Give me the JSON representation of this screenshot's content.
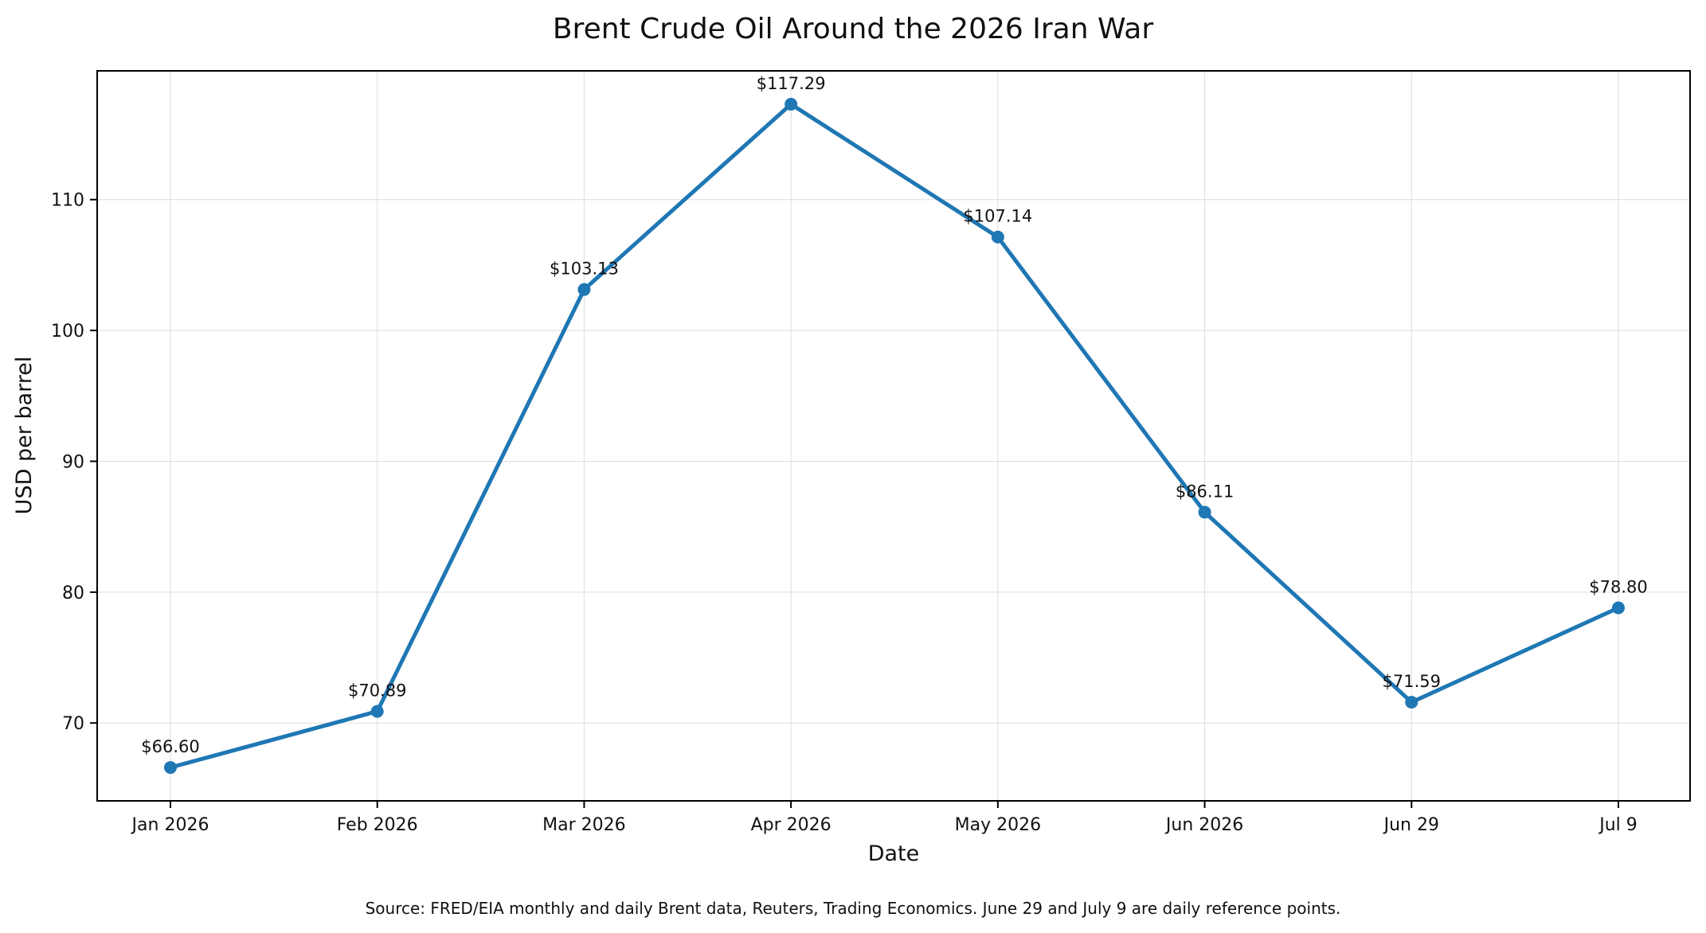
{
  "chart_data": {
    "type": "line",
    "title": "Brent Crude Oil Around the 2026 Iran War",
    "xlabel": "Date",
    "ylabel": "USD per barrel",
    "categories": [
      "Jan 2026",
      "Feb 2026",
      "Mar 2026",
      "Apr 2026",
      "May 2026",
      "Jun 2026",
      "Jun 29",
      "Jul 9"
    ],
    "series": [
      {
        "values": [
          66.6,
          70.89,
          103.13,
          117.29,
          107.14,
          86.11,
          71.59,
          78.8
        ],
        "labels": [
          "$66.60",
          "$70.89",
          "$103.13",
          "$117.29",
          "$107.14",
          "$86.11",
          "$71.59",
          "$78.80"
        ],
        "color": "#1f77b4"
      }
    ],
    "ylim": [
      64.05,
      119.84
    ],
    "yticks": [
      70,
      80,
      90,
      100,
      110
    ],
    "grid": true,
    "legend": "none",
    "source_note": "Source: FRED/EIA monthly and daily Brent data, Reuters, Trading Economics. June 29 and July 9 are daily reference points."
  }
}
